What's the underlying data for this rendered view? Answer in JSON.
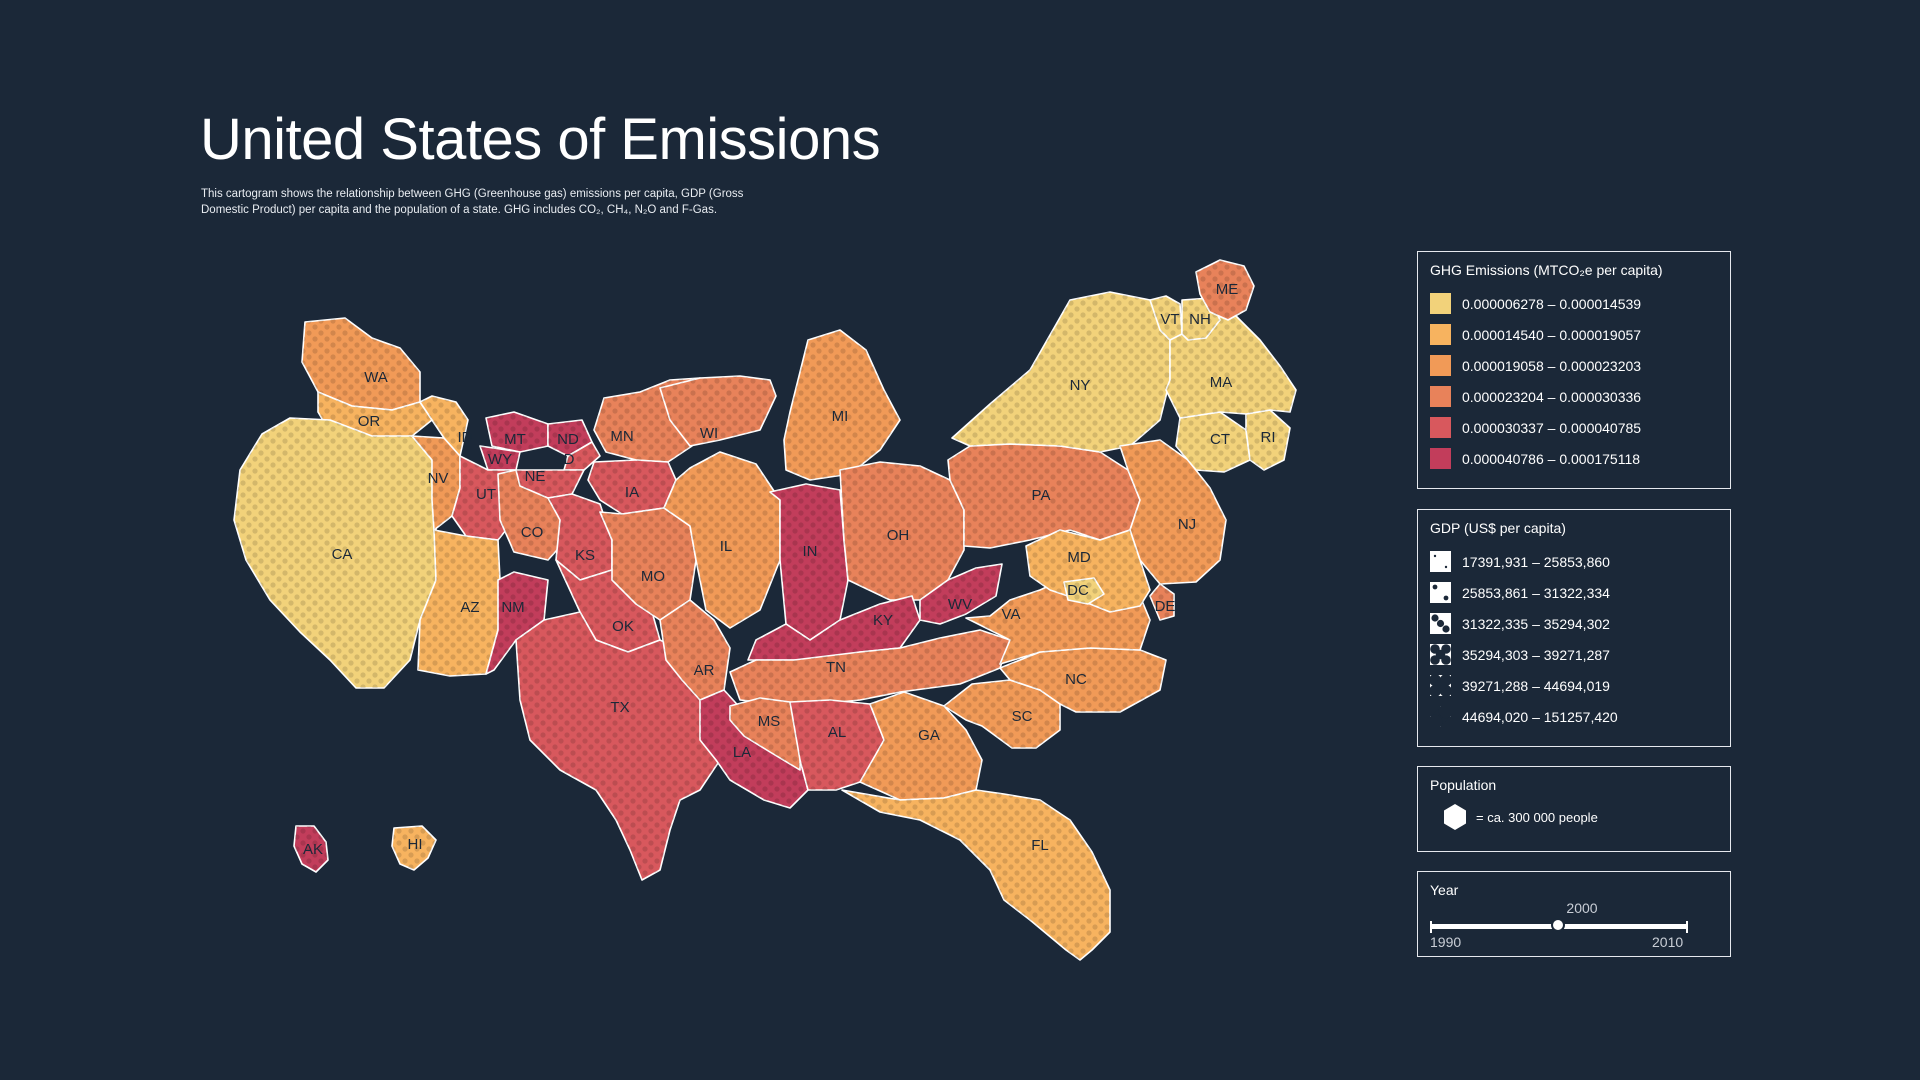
{
  "header": {
    "title": "United States of Emissions",
    "subtitle": "This cartogram shows the relationship between GHG (Greenhouse gas) emissions per capita, GDP (Gross Domestic Product) per capita and the population of a state. GHG includes CO₂, CH₄, N₂O and F-Gas."
  },
  "colors": {
    "background": "#1b2838",
    "ghg": [
      "#f2d27a",
      "#f7b35f",
      "#f19a57",
      "#e8825a",
      "#d8585d",
      "#c23d5b"
    ]
  },
  "legend_ghg": {
    "title": "GHG Emissions (MTCO₂e per capita)",
    "items": [
      {
        "label": "0.000006278 – 0.000014539",
        "color": "#f2d27a"
      },
      {
        "label": "0.000014540 – 0.000019057",
        "color": "#f7b35f"
      },
      {
        "label": "0.000019058 – 0.000023203",
        "color": "#f19a57"
      },
      {
        "label": "0.000023204 – 0.000030336",
        "color": "#e8825a"
      },
      {
        "label": "0.000030337 – 0.000040785",
        "color": "#d8585d"
      },
      {
        "label": "0.000040786 – 0.000175118",
        "color": "#c23d5b"
      }
    ]
  },
  "legend_gdp": {
    "title": "GDP (US$ per capita)",
    "items": [
      {
        "label": "17391,931 – 25853,860"
      },
      {
        "label": "25853,861 – 31322,334"
      },
      {
        "label": "31322,335 – 35294,302"
      },
      {
        "label": "35294,303 – 39271,287"
      },
      {
        "label": "39271,288 – 44694,019"
      },
      {
        "label": "44694,020 – 151257,420"
      }
    ]
  },
  "legend_population": {
    "title": "Population",
    "label": "= ca. 300 000 people"
  },
  "year": {
    "title": "Year",
    "min": "1990",
    "max": "2010",
    "value": "2000"
  },
  "states": [
    {
      "abbr": "WA",
      "ghg_class": 2
    },
    {
      "abbr": "OR",
      "ghg_class": 1
    },
    {
      "abbr": "CA",
      "ghg_class": 0
    },
    {
      "abbr": "NV",
      "ghg_class": 2
    },
    {
      "abbr": "ID",
      "ghg_class": 1
    },
    {
      "abbr": "MT",
      "ghg_class": 5
    },
    {
      "abbr": "WY",
      "ghg_class": 5
    },
    {
      "abbr": "UT",
      "ghg_class": 4
    },
    {
      "abbr": "AZ",
      "ghg_class": 1
    },
    {
      "abbr": "CO",
      "ghg_class": 3
    },
    {
      "abbr": "NM",
      "ghg_class": 5
    },
    {
      "abbr": "ND",
      "ghg_class": 5
    },
    {
      "abbr": "SD",
      "ghg_class": 4
    },
    {
      "abbr": "NE",
      "ghg_class": 4
    },
    {
      "abbr": "KS",
      "ghg_class": 4
    },
    {
      "abbr": "OK",
      "ghg_class": 4
    },
    {
      "abbr": "TX",
      "ghg_class": 4
    },
    {
      "abbr": "MN",
      "ghg_class": 3
    },
    {
      "abbr": "IA",
      "ghg_class": 4
    },
    {
      "abbr": "MO",
      "ghg_class": 3
    },
    {
      "abbr": "AR",
      "ghg_class": 3
    },
    {
      "abbr": "LA",
      "ghg_class": 5
    },
    {
      "abbr": "WI",
      "ghg_class": 3
    },
    {
      "abbr": "IL",
      "ghg_class": 2
    },
    {
      "abbr": "MI",
      "ghg_class": 2
    },
    {
      "abbr": "IN",
      "ghg_class": 5
    },
    {
      "abbr": "OH",
      "ghg_class": 3
    },
    {
      "abbr": "KY",
      "ghg_class": 5
    },
    {
      "abbr": "WV",
      "ghg_class": 5
    },
    {
      "abbr": "TN",
      "ghg_class": 3
    },
    {
      "abbr": "MS",
      "ghg_class": 3
    },
    {
      "abbr": "AL",
      "ghg_class": 4
    },
    {
      "abbr": "GA",
      "ghg_class": 2
    },
    {
      "abbr": "FL",
      "ghg_class": 1
    },
    {
      "abbr": "SC",
      "ghg_class": 2
    },
    {
      "abbr": "NC",
      "ghg_class": 2
    },
    {
      "abbr": "VA",
      "ghg_class": 2
    },
    {
      "abbr": "PA",
      "ghg_class": 3
    },
    {
      "abbr": "NY",
      "ghg_class": 0
    },
    {
      "abbr": "NJ",
      "ghg_class": 2
    },
    {
      "abbr": "DE",
      "ghg_class": 3
    },
    {
      "abbr": "MD",
      "ghg_class": 1
    },
    {
      "abbr": "DC",
      "ghg_class": 0
    },
    {
      "abbr": "CT",
      "ghg_class": 0
    },
    {
      "abbr": "RI",
      "ghg_class": 0
    },
    {
      "abbr": "MA",
      "ghg_class": 0
    },
    {
      "abbr": "VT",
      "ghg_class": 0
    },
    {
      "abbr": "NH",
      "ghg_class": 0
    },
    {
      "abbr": "ME",
      "ghg_class": 3
    },
    {
      "abbr": "AK",
      "ghg_class": 5
    },
    {
      "abbr": "HI",
      "ghg_class": 1
    }
  ]
}
